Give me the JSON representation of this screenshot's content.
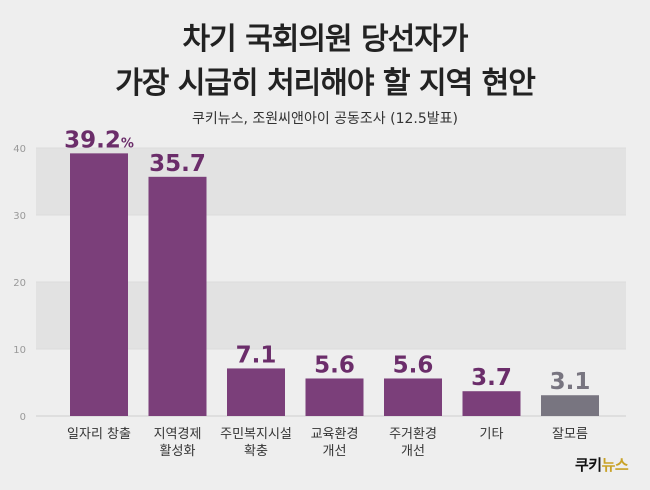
{
  "header": {
    "title_line1": "차기 국회의원 당선자가",
    "title_line2": "가장 시급히 처리해야 할 지역 현안",
    "subtitle": "쿠키뉴스, 조원씨앤아이 공동조사 (12.5발표)"
  },
  "logo": {
    "part1": "쿠키",
    "part2": "뉴스"
  },
  "colors": {
    "bar_main": "#7b3f7a",
    "bar_other": "#787580",
    "label_main": "#6b2d6a",
    "label_other": "#787580",
    "band": "#e2e2e2"
  },
  "chart_data": {
    "type": "bar",
    "categories": [
      [
        "일자리 창출"
      ],
      [
        "지역경제",
        "활성화"
      ],
      [
        "주민복지시설",
        "확충"
      ],
      [
        "교육환경",
        "개선"
      ],
      [
        "주거환경",
        "개선"
      ],
      [
        "기타"
      ],
      [
        "잘모름"
      ]
    ],
    "values": [
      39.2,
      35.7,
      7.1,
      5.6,
      5.6,
      3.7,
      3.1
    ],
    "value_labels": [
      "39.2",
      "35.7",
      "7.1",
      "5.6",
      "5.6",
      "3.7",
      "3.1"
    ],
    "first_label_unit": "%",
    "yticks": [
      "0",
      "10",
      "20",
      "30",
      "40"
    ],
    "ylim": [
      0,
      40
    ],
    "grid": true
  }
}
